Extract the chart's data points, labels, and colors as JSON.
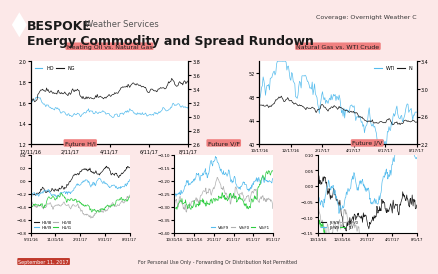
{
  "title": "Energy Commodity and Spread Rundown",
  "header_brand": "BESPOKE",
  "header_sub": "Weather Services",
  "coverage": "Coverage: Overnight Weather C",
  "bg_color": "#fce8e8",
  "panel_bg": "#ffffff",
  "top_panels": [
    {
      "title": "Heating Oil vs. Natural Gas",
      "subtitle_labels": [
        "HO",
        "NG"
      ],
      "subtitle_colors": [
        "#56bced",
        "#1a1a1a"
      ],
      "x_ticks": [
        "12/11/2016",
        "2/11/2017",
        "4/11/2017",
        "6/11/2017",
        "8/11/2017"
      ],
      "left_ylim": [
        1.2,
        2.0
      ],
      "right_ylim": [
        2.6,
        3.8
      ],
      "left_yticks": [
        1.2,
        1.4,
        1.6,
        1.8,
        2.0
      ],
      "right_yticks": [
        2.6,
        2.8,
        3.0,
        3.2,
        3.4,
        3.6,
        3.8
      ]
    },
    {
      "title": "Natural Gas vs. WTI Crude",
      "subtitle_labels": [
        "WTI",
        "N"
      ],
      "subtitle_colors": [
        "#56bced",
        "#1a1a1a"
      ],
      "x_ticks": [
        "10/17/2016",
        "12/17/2016",
        "2/17/2017",
        "4/17/2017",
        "6/17/2017",
        "8/17/2017"
      ],
      "left_ylim": [
        2.2,
        3.4
      ],
      "right_ylim": [
        40,
        54
      ],
      "left_yticks": [
        2.2,
        2.4,
        2.6,
        2.8,
        3.0,
        3.2,
        3.4
      ],
      "right_yticks": [
        40,
        42,
        44,
        46,
        48,
        50,
        52,
        54
      ]
    }
  ],
  "bottom_panels": [
    {
      "title": "Future H/I",
      "legend": [
        "H8/I8",
        "H9/I9",
        "H0/I0",
        "H1/I1"
      ],
      "legend_colors": [
        "#1a1a1a",
        "#56bced",
        "#b0b0b0",
        "#2ecc40"
      ],
      "x_ticks": [
        "5/31/16",
        "8/31/16",
        "11/31/16",
        "2/31/17",
        "5/31/17",
        "8/31/17"
      ],
      "ylim": [
        -0.8,
        0.4
      ]
    },
    {
      "title": "Future V/F",
      "legend": [
        "V8/F9",
        "V9/F0",
        "V0/F1"
      ],
      "legend_colors": [
        "#56bced",
        "#b0b0b0",
        "#2ecc40"
      ],
      "x_ticks": [
        "10/31/16",
        "12/11/16",
        "2/11/17",
        "4/11/17",
        "6/11/17",
        "8/11/17"
      ],
      "ylim": [
        -0.4,
        -0.1
      ]
    },
    {
      "title": "Future J/V",
      "legend": [
        "J8/V8",
        "J9/V9",
        "J0/V0",
        "J1/"
      ],
      "legend_colors": [
        "#1a1a1a",
        "#56bced",
        "#b0b0b0",
        "#2ecc40"
      ],
      "x_ticks": [
        "10/13/16",
        "12/31/16",
        "2/17/17",
        "4/17/17",
        "6/17/17",
        "8/1/17"
      ],
      "ylim": [
        -0.15,
        0.1
      ]
    }
  ],
  "footer": "For Personal Use Only - Forwarding Or Distribution Not Permitted",
  "date_label": "September 11, 2017",
  "title_box_color": "#f08080",
  "title_box_text_color": "#1a1a1a"
}
